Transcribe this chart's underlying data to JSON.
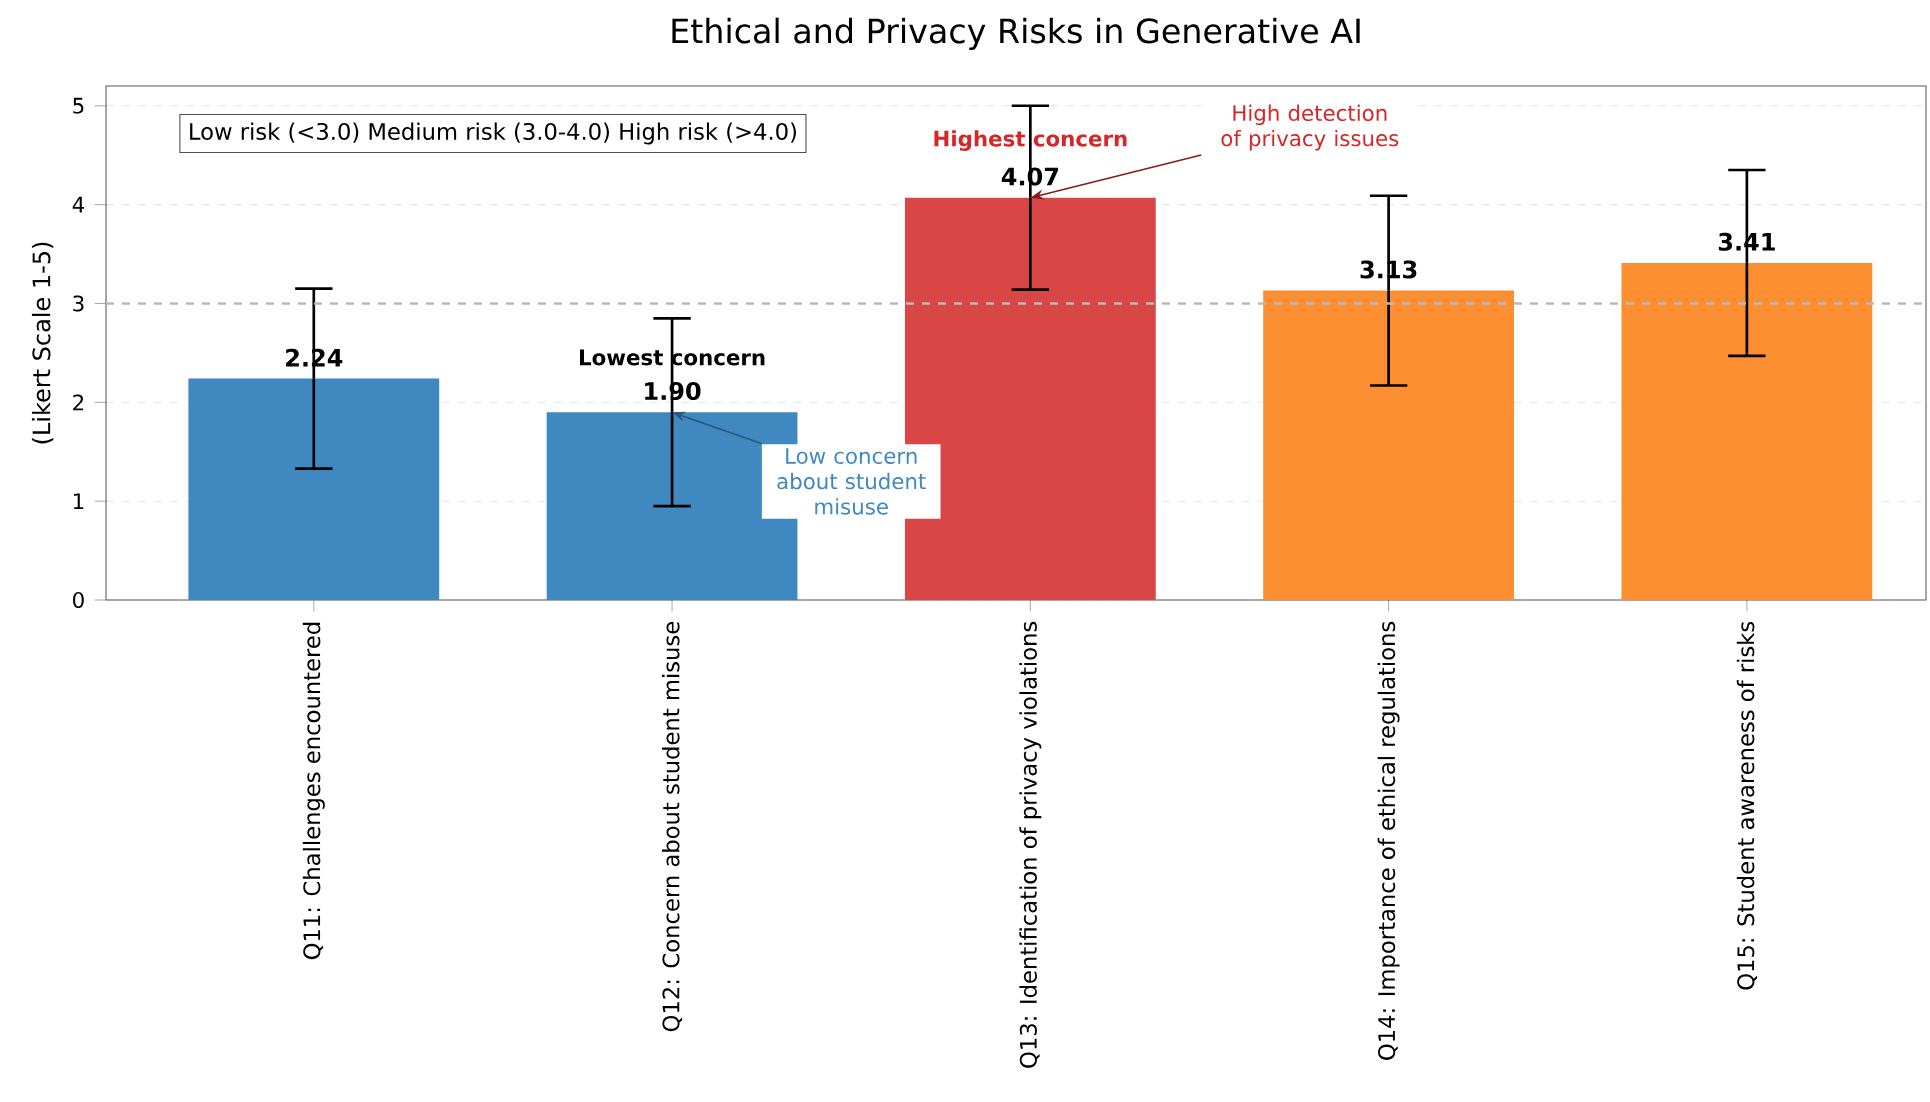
{
  "chart_data": {
    "type": "bar",
    "title": "Ethical and Privacy Risks in Generative AI",
    "ylabel": "(Likert Scale 1-5)",
    "categories": [
      "Q11: Challenges encountered",
      "Q12: Concern about student misuse",
      "Q13: Identification of privacy violations",
      "Q14: Importance of ethical regulations",
      "Q15: Student awareness of risks"
    ],
    "values": [
      2.24,
      1.9,
      4.07,
      3.13,
      3.41
    ],
    "value_labels": [
      "2.24",
      "1.90",
      "4.07",
      "3.13",
      "3.41"
    ],
    "errors": [
      0.91,
      0.95,
      0.93,
      0.96,
      0.94
    ],
    "colors": [
      "#3f88c0",
      "#3f88c0",
      "#d94646",
      "#fd8f33",
      "#fd8f33"
    ],
    "ylim": [
      0,
      5.2
    ],
    "yticks": [
      0,
      1,
      2,
      3,
      4,
      5
    ],
    "grid": "y",
    "ref_lines": [
      {
        "axis": "y",
        "value": 3,
        "color": "#bbbbbb",
        "line_style": "dashed"
      }
    ],
    "annotations": [
      {
        "text": "Lowest concern",
        "x": "Q12: Concern about student misuse",
        "y": 1.9
      },
      {
        "text": "Low concern about student misuse",
        "x": "Q12: Concern about student misuse",
        "y": 1.9
      },
      {
        "text": "Highest concern",
        "x": "Q13: Identification of privacy violations",
        "y": 4.07
      },
      {
        "text": "High detection of privacy issues",
        "x": "Q13: Identification of privacy violations",
        "y": 4.07
      },
      "Low risk (<3.0)  Medium risk (3.0-4.0)  High risk (>4.0)"
    ]
  }
}
